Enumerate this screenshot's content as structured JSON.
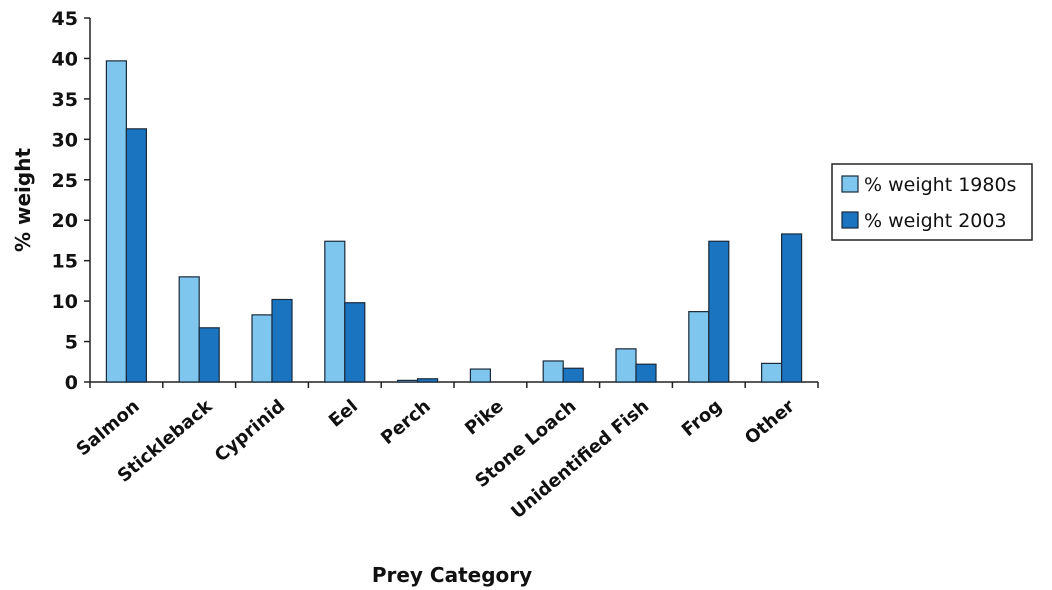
{
  "chart_data": {
    "type": "bar",
    "categories": [
      "Salmon",
      "Stickleback",
      "Cyprinid",
      "Eel",
      "Perch",
      "Pike",
      "Stone Loach",
      "Unidentified Fish",
      "Frog",
      "Other"
    ],
    "series": [
      {
        "name": "% weight 1980s",
        "values": [
          39.7,
          13.0,
          8.3,
          17.4,
          0.2,
          1.6,
          2.6,
          4.1,
          8.7,
          2.3
        ]
      },
      {
        "name": "% weight 2003",
        "values": [
          31.3,
          6.7,
          10.2,
          9.8,
          0.4,
          0,
          1.7,
          2.2,
          17.4,
          18.3
        ]
      }
    ],
    "colors": [
      "#7fc6ee",
      "#1a74c0"
    ],
    "title": "",
    "xlabel": "Prey Category",
    "ylabel": "% weight",
    "ylim": [
      0,
      45
    ],
    "yticks": [
      0,
      5,
      10,
      15,
      20,
      25,
      30,
      35,
      40,
      45
    ],
    "grid": false,
    "legend_position": "right"
  }
}
